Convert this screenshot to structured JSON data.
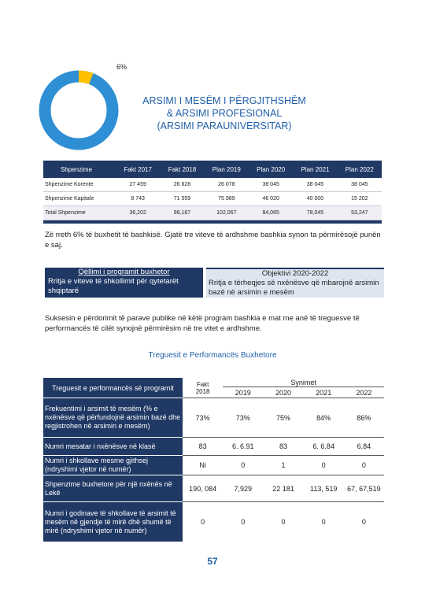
{
  "donut": {
    "label": "6%",
    "value": 6
  },
  "title": [
    "ARSIMI I MESËM I PËRGJITHSHËM",
    "& ARSIMI PROFESIONAL",
    "(ARSIMI PARAUNIVERSITAR)"
  ],
  "expenses_table": {
    "header": [
      "Shpenzime",
      "Fakt 2017",
      "Fakt 2018",
      "Plan 2019",
      "Plan 2020",
      "Plan 2021",
      "Plan 2022"
    ],
    "rows": [
      [
        "Shpenzime Korente",
        "27 459",
        "26 628",
        "26 078",
        "38 045",
        "38 045",
        "38 045"
      ],
      [
        "Shpenzime Kapitale",
        "8 743",
        "71 559",
        "75 989",
        "46 020",
        "40 000",
        "15 202"
      ],
      [
        "Total Shpenzime",
        "36,202",
        "98,187",
        "102,067",
        "84,065",
        "78,045",
        "53,247"
      ]
    ]
  },
  "paragraph_1": "Zë rreth 6% të buxhetit të bashkisë. Gjatë tre viteve të ardhshme bashkia synon ta përmirësojë punën e saj.",
  "goal_table": {
    "goal_title": "Qëllimi i programit buxhetor",
    "goal_text": "Rritja e viteve të shkollimit për qytetarët shqiptarë",
    "objective_title": "Objektivi 2020-2022",
    "objective_text": "Rritja e tërheqjes së nxënësve që mbarojnë arsimin bazë në arsimin e mesëm"
  },
  "paragraph_2": "Suksesin e përdorimit të parave publike në këtë program bashkia e mat me anë të treguesve të performancës të cilët synojnë përmirësim në tre vitet e ardhshme.",
  "performance_title": "Treguesit e Performancës Buxhetore",
  "performance_table": {
    "header": {
      "indicator": "Treguesit e performancës së programit",
      "fact": "Fakt",
      "fact_year": "2018",
      "targets": "Synimet",
      "target_years": [
        "2019",
        "2020",
        "2021",
        "2022"
      ]
    },
    "rows": [
      {
        "label": "Frekuentimi i arsimit të mesëm (% e nxënësve që përfundojnë arsimin bazë dhe regjistrohen në arsimin e mesëm)",
        "values": [
          "73%",
          "73%",
          "75%",
          "84%",
          "86%"
        ]
      },
      {
        "label": "Numri mesatar i nxënësve në klasë",
        "values": [
          "83",
          "6. 6.91",
          "83",
          "6. 6.84",
          "6.84"
        ]
      },
      {
        "label": "Numri i shkollave mesme gjithsej (ndryshimi vjetor në numër)",
        "values": [
          "Ni",
          "0",
          "1",
          "0",
          "0"
        ]
      },
      {
        "label": "Shpenzime buxhetore për një nxënës në Lekë",
        "values": [
          "190, 084",
          "7,929",
          "22 181",
          "113, 519",
          "67, 67,519"
        ]
      },
      {
        "label": "Numri i godinave të shkollave të arsimit të mesëm në gjendje të mirë dhë shumë të mirë (ndryshimi vjetor në numër)",
        "values": [
          "0",
          "0",
          "0",
          "0",
          "0"
        ]
      }
    ]
  },
  "page_number": "57"
}
